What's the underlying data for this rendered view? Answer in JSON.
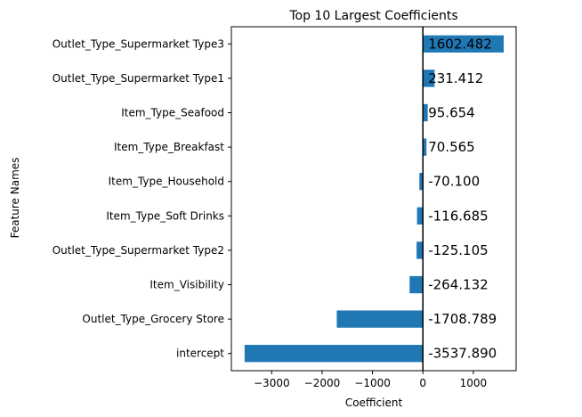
{
  "chart_data": {
    "type": "bar",
    "orientation": "horizontal",
    "title": "Top 10 Largest Coefficients",
    "xlabel": "Coefficient",
    "ylabel": "Feature Names",
    "xlim": [
      -3800,
      1850
    ],
    "xticks": [
      -3000,
      -2000,
      -1000,
      0,
      1000
    ],
    "xtick_labels": [
      "−3000",
      "−2000",
      "−1000",
      "0",
      "1000"
    ],
    "grid": false,
    "bar_color": "#1f77b4",
    "categories": [
      "Outlet_Type_Supermarket Type3",
      "Outlet_Type_Supermarket Type1",
      "Item_Type_Seafood",
      "Item_Type_Breakfast",
      "Item_Type_Household",
      "Item_Type_Soft Drinks",
      "Outlet_Type_Supermarket Type2",
      "Item_Visibility",
      "Outlet_Type_Grocery Store",
      "intercept"
    ],
    "values": [
      1602.482,
      231.412,
      95.654,
      70.565,
      -70.1,
      -116.685,
      -125.105,
      -264.132,
      -1708.789,
      -3537.89
    ],
    "data_labels": [
      "1602.482",
      "231.412",
      "95.654",
      "70.565",
      "-70.100",
      "-116.685",
      "-125.105",
      "-264.132",
      "-1708.789",
      "-3537.890"
    ]
  }
}
